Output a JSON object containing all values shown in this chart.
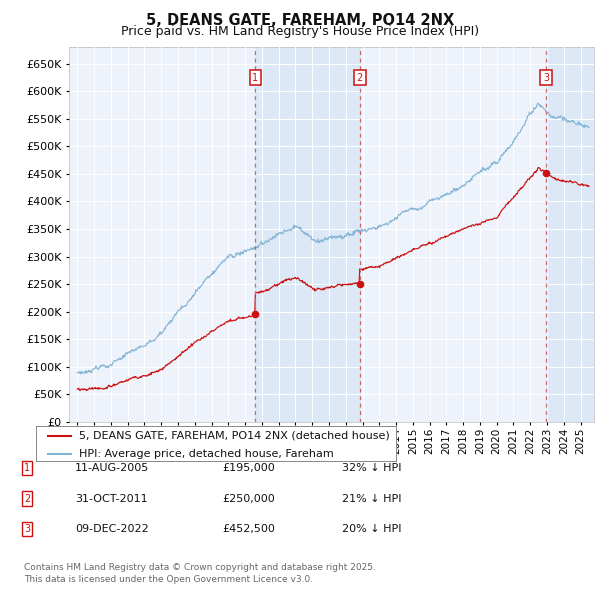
{
  "title": "5, DEANS GATE, FAREHAM, PO14 2NX",
  "subtitle": "Price paid vs. HM Land Registry's House Price Index (HPI)",
  "ylim": [
    0,
    680000
  ],
  "yticks": [
    0,
    50000,
    100000,
    150000,
    200000,
    250000,
    300000,
    350000,
    400000,
    450000,
    500000,
    550000,
    600000,
    650000
  ],
  "xlim_start": 1994.5,
  "xlim_end": 2025.8,
  "background_color": "#ffffff",
  "plot_bg_color": "#eef2fa",
  "grid_color": "#ffffff",
  "hpi_color": "#7fb3d3",
  "sale_color": "#cc1111",
  "shade_color": "#dce8f5",
  "sale_points": [
    {
      "date_num": 2005.61,
      "price": 195000,
      "label": "1"
    },
    {
      "date_num": 2011.83,
      "price": 250000,
      "label": "2"
    },
    {
      "date_num": 2022.94,
      "price": 452500,
      "label": "3"
    }
  ],
  "vline_color": "#cc6666",
  "annotation_box_color": "#cc1111",
  "legend_red_label": "5, DEANS GATE, FAREHAM, PO14 2NX (detached house)",
  "legend_blue_label": "HPI: Average price, detached house, Fareham",
  "table_rows": [
    {
      "num": "1",
      "date": "11-AUG-2005",
      "price": "£195,000",
      "pct": "32% ↓ HPI"
    },
    {
      "num": "2",
      "date": "31-OCT-2011",
      "price": "£250,000",
      "pct": "21% ↓ HPI"
    },
    {
      "num": "3",
      "date": "09-DEC-2022",
      "price": "£452,500",
      "pct": "20% ↓ HPI"
    }
  ],
  "footnote": "Contains HM Land Registry data © Crown copyright and database right 2025.\nThis data is licensed under the Open Government Licence v3.0.",
  "title_fontsize": 10.5,
  "subtitle_fontsize": 9,
  "tick_fontsize": 8,
  "legend_fontsize": 8,
  "table_fontsize": 8,
  "footnote_fontsize": 6.5
}
